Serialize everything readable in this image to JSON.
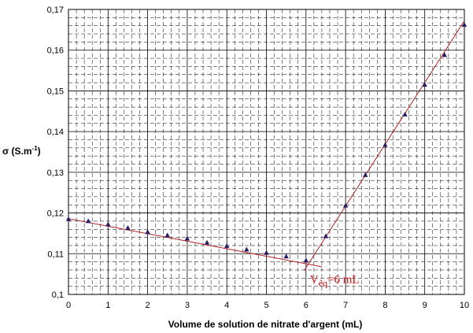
{
  "chart_data": {
    "type": "scatter",
    "title": "",
    "xlabel": "Volume de solution de nitrate d'argent (mL)",
    "ylabel": {
      "base": "σ (S.m",
      "sup": "-1",
      "close": ")"
    },
    "xlim": [
      0,
      10
    ],
    "ylim": [
      0.1,
      0.17
    ],
    "x_ticks": [
      "0",
      "1",
      "2",
      "3",
      "4",
      "5",
      "6",
      "7",
      "8",
      "9",
      "10"
    ],
    "y_ticks": [
      "0,1",
      "0,11",
      "0,12",
      "0,13",
      "0,14",
      "0,15",
      "0,16",
      "0,17"
    ],
    "grid": true,
    "legend": "none",
    "colors": {
      "points": "#2a1a66",
      "lines": "#b02020",
      "annotation": "#d01010",
      "grid": "#000000"
    },
    "series": [
      {
        "x": [
          0,
          0.5,
          1,
          1.5,
          2,
          2.5,
          3,
          3.5,
          4,
          4.5,
          5,
          5.5,
          6,
          6.5,
          7,
          7.5,
          8,
          8.5,
          9,
          9.5,
          10
        ],
        "y": [
          0.1185,
          0.118,
          0.1172,
          0.1163,
          0.1153,
          0.1145,
          0.1137,
          0.1127,
          0.1119,
          0.111,
          0.1102,
          0.1093,
          0.1083,
          0.1143,
          0.1218,
          0.1293,
          0.1367,
          0.1442,
          0.1515,
          0.1588,
          0.1662
        ]
      }
    ],
    "fit_lines": [
      {
        "x": [
          0,
          6.4
        ],
        "y": [
          0.1186,
          0.1068
        ]
      },
      {
        "x": [
          5.95,
          10
        ],
        "y": [
          0.1058,
          0.1672
        ]
      }
    ],
    "annotation": {
      "base": "V",
      "sub": "éq",
      "rest": "=6 mL",
      "x": 6.1,
      "y": 0.1028
    }
  }
}
